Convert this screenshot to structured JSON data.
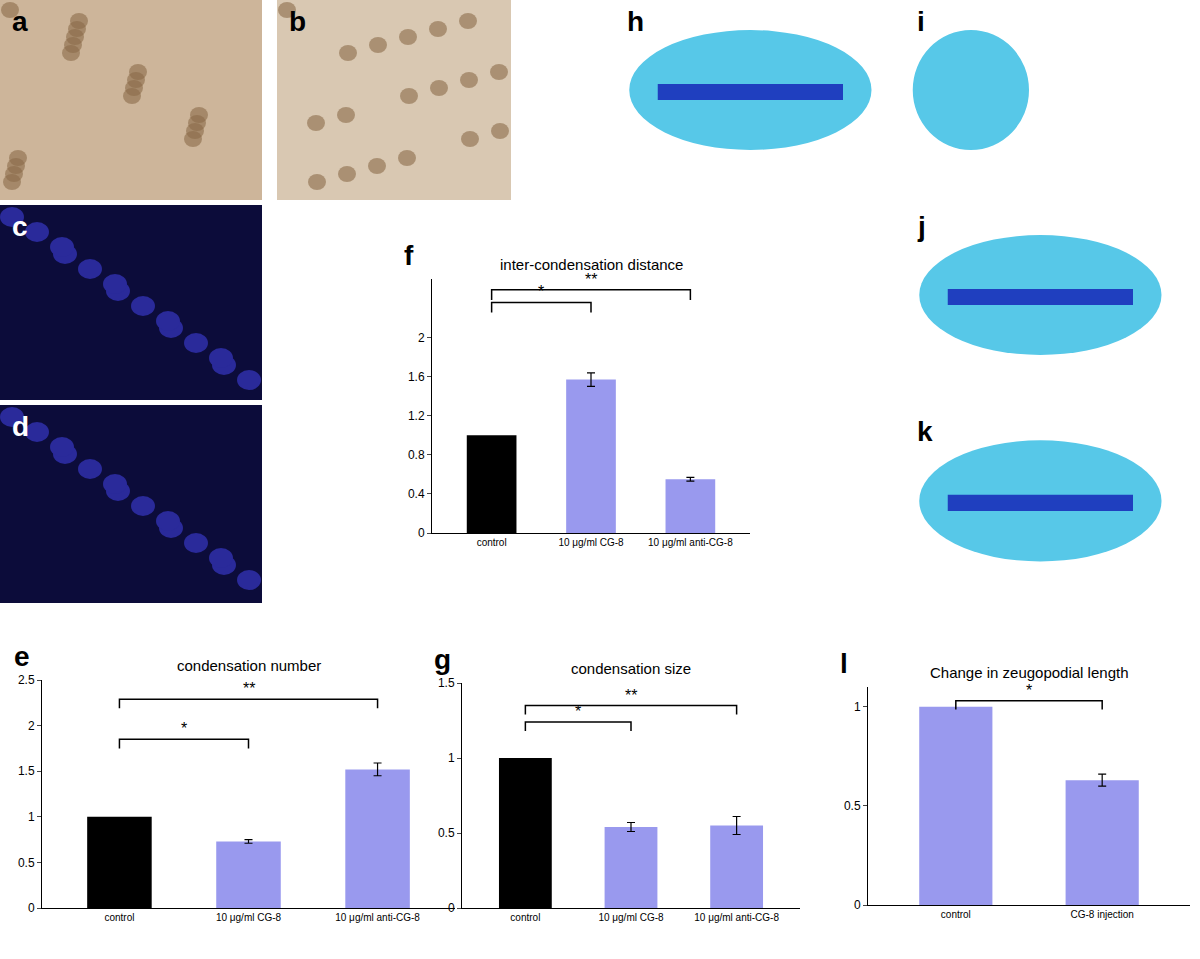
{
  "image_panels": [
    {
      "label": "a"
    },
    {
      "label": "b"
    },
    {
      "label": "c"
    },
    {
      "label": "d"
    },
    {
      "label": "h"
    },
    {
      "label": "i"
    },
    {
      "label": "j"
    },
    {
      "label": "k"
    }
  ],
  "chart_data": [
    {
      "panel": "e",
      "type": "bar",
      "title": "condensation number",
      "categories": [
        "control",
        "10 μg/ml CG-8",
        "10 μg/ml anti-CG-8"
      ],
      "values": [
        1,
        0.73,
        1.52
      ],
      "errors": [
        null,
        0.02,
        0.07
      ],
      "colors": [
        "#000000",
        "#9999ee",
        "#9999ee"
      ],
      "ylim": [
        0,
        2.5
      ],
      "yticks": [
        0,
        0.5,
        1,
        1.5,
        2,
        2.5
      ],
      "grid": false,
      "significance": [
        {
          "from": 0,
          "to": 1,
          "y": 1.85,
          "label": "*"
        },
        {
          "from": 0,
          "to": 2,
          "y": 2.29,
          "label": "**"
        }
      ]
    },
    {
      "panel": "f",
      "type": "bar",
      "title": "inter-condensation distance",
      "categories": [
        "control",
        "10 μg/ml CG-8",
        "10 μg/ml anti-CG-8"
      ],
      "values": [
        1,
        1.57,
        0.55
      ],
      "errors": [
        null,
        0.07,
        0.02
      ],
      "colors": [
        "#000000",
        "#9999ee",
        "#9999ee"
      ],
      "ylim": [
        0,
        2.6
      ],
      "yticks": [
        0,
        0.4,
        0.8,
        1.2,
        1.6,
        2
      ],
      "grid": false,
      "significance": [
        {
          "from": 0,
          "to": 1,
          "y": 2.36,
          "label": "*"
        },
        {
          "from": 0,
          "to": 2,
          "y": 2.49,
          "label": "**"
        }
      ]
    },
    {
      "panel": "g",
      "type": "bar",
      "title": "condensation size",
      "categories": [
        "control",
        "10 μg/ml CG-8",
        "10 μg/ml anti-CG-8"
      ],
      "values": [
        1,
        0.54,
        0.55
      ],
      "errors": [
        null,
        0.03,
        0.06
      ],
      "colors": [
        "#000000",
        "#9999ee",
        "#9999ee"
      ],
      "ylim": [
        0,
        1.5
      ],
      "yticks": [
        0,
        0.5,
        1,
        1.5
      ],
      "grid": false,
      "significance": [
        {
          "from": 0,
          "to": 1,
          "y": 1.24,
          "label": "*"
        },
        {
          "from": 0,
          "to": 2,
          "y": 1.35,
          "label": "**"
        }
      ]
    },
    {
      "panel": "l",
      "type": "bar",
      "title": "Change in zeugopodial length",
      "categories": [
        "control",
        "CG-8 injection"
      ],
      "values": [
        1,
        0.63
      ],
      "errors": [
        null,
        0.03
      ],
      "colors": [
        "#9999ee",
        "#9999ee"
      ],
      "ylim": [
        0,
        1.1
      ],
      "yticks": [
        0,
        0.5,
        1
      ],
      "grid": false,
      "significance": [
        {
          "from": 0,
          "to": 1,
          "y": 1.03,
          "label": "*"
        }
      ]
    }
  ]
}
